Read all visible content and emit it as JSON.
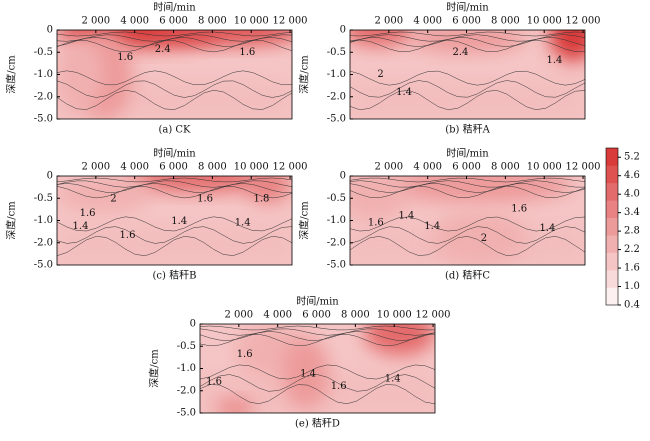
{
  "chart_data": [
    {
      "type": "contour",
      "xlabel": "时间/min",
      "ylabel": "深度/cm",
      "caption": "(a) CK",
      "xlim": [
        0,
        12100
      ],
      "xticks": [
        {
          "value": 2000,
          "label": "2 000"
        },
        {
          "value": 4000,
          "label": "4 000"
        },
        {
          "value": 6000,
          "label": "6 000"
        },
        {
          "value": 8000,
          "label": "8 000"
        },
        {
          "value": 10000,
          "label": "10 000"
        },
        {
          "value": 12000,
          "label": "12 000"
        }
      ],
      "ylim": [
        0,
        -5
      ],
      "yticks": [
        0,
        {
          "value": -0.5,
          "label": "-0.5"
        },
        {
          "value": -1,
          "label": "-1.0"
        },
        {
          "value": -2,
          "label": "-2.0"
        },
        {
          "value": -5,
          "label": "-5.0"
        }
      ],
      "contour_labels": [
        "1.6",
        "2.4",
        "1.6"
      ]
    },
    {
      "type": "contour",
      "xlabel": "时间/min",
      "ylabel": "深度/cm",
      "caption": "(b) 秸秆A",
      "xlim": [
        0,
        12100
      ],
      "xticks": [
        {
          "value": 2000,
          "label": "2 000"
        },
        {
          "value": 4000,
          "label": "4 000"
        },
        {
          "value": 6000,
          "label": "6 000"
        },
        {
          "value": 8000,
          "label": "8 000"
        },
        {
          "value": 10000,
          "label": "10 000"
        },
        {
          "value": 12000,
          "label": "12 000"
        }
      ],
      "ylim": [
        0,
        -5
      ],
      "yticks": [
        0,
        {
          "value": -0.5,
          "label": "-0.5"
        },
        {
          "value": -1,
          "label": "-1.0"
        },
        {
          "value": -2,
          "label": "-2.0"
        },
        {
          "value": -5,
          "label": "-5.0"
        }
      ],
      "contour_labels": [
        "2.4",
        "2",
        "1.4",
        "1.4"
      ]
    },
    {
      "type": "contour",
      "xlabel": "时间/min",
      "ylabel": "深度/cm",
      "caption": "(c)  秸秆B",
      "xlim": [
        0,
        12100
      ],
      "xticks": [
        {
          "value": 2000,
          "label": "2 000"
        },
        {
          "value": 4000,
          "label": "4 000"
        },
        {
          "value": 6000,
          "label": "6 000"
        },
        {
          "value": 8000,
          "label": "8 000"
        },
        {
          "value": 10000,
          "label": "10 000"
        },
        {
          "value": 12000,
          "label": "12 000"
        }
      ],
      "ylim": [
        0,
        -5
      ],
      "yticks": [
        0,
        {
          "value": -0.5,
          "label": "-0.5"
        },
        {
          "value": -1,
          "label": "-1.0"
        },
        {
          "value": -2,
          "label": "-2.0"
        },
        {
          "value": -5,
          "label": "-5.0"
        }
      ],
      "contour_labels": [
        "1.6",
        "1.4",
        "2",
        "1.6",
        "1.6",
        "1.4",
        "1.4",
        "1.8"
      ]
    },
    {
      "type": "contour",
      "xlabel": "时间/min",
      "ylabel": "深度/cm",
      "caption": "(d)  秸秆C",
      "xlim": [
        0,
        12100
      ],
      "xticks": [
        {
          "value": 2000,
          "label": "2 000"
        },
        {
          "value": 4000,
          "label": "4 000"
        },
        {
          "value": 6000,
          "label": "6 000"
        },
        {
          "value": 8000,
          "label": "8 000"
        },
        {
          "value": 10000,
          "label": "10 000"
        },
        {
          "value": 12000,
          "label": "12 000"
        }
      ],
      "ylim": [
        0,
        -5
      ],
      "yticks": [
        0,
        {
          "value": -0.5,
          "label": "-0.5"
        },
        {
          "value": -1,
          "label": "-1.0"
        },
        {
          "value": -2,
          "label": "-2.0"
        },
        {
          "value": -5,
          "label": "-5.0"
        }
      ],
      "contour_labels": [
        "1.6",
        "1.4",
        "1.4",
        "2",
        "1.6",
        "1.4"
      ]
    },
    {
      "type": "contour",
      "xlabel": "时间/min",
      "ylabel": "深度/cm",
      "caption": "(e)  秸秆D",
      "xlim": [
        0,
        12100
      ],
      "xticks": [
        {
          "value": 2000,
          "label": "2 000"
        },
        {
          "value": 4000,
          "label": "4 000"
        },
        {
          "value": 6000,
          "label": "6 000"
        },
        {
          "value": 8000,
          "label": "8 000"
        },
        {
          "value": 10000,
          "label": "10 000"
        },
        {
          "value": 12000,
          "label": "12 000"
        }
      ],
      "ylim": [
        0,
        -5
      ],
      "yticks": [
        0,
        {
          "value": -0.5,
          "label": "-0.5"
        },
        {
          "value": -1,
          "label": "-1.0"
        },
        {
          "value": -2,
          "label": "-2.0"
        },
        {
          "value": -5,
          "label": "-5.0"
        }
      ],
      "contour_labels": [
        "1.6",
        "1.4",
        "1.6",
        "1.4",
        "1.6"
      ]
    },
    {
      "type": "colorbar",
      "ylim": [
        0.4,
        5.5
      ],
      "yticks": [
        0.4,
        {
          "value": 1,
          "label": "1.0"
        },
        1.6,
        2.2,
        2.8,
        3.4,
        {
          "value": 4,
          "label": "4.0"
        },
        4.6,
        5.2
      ],
      "colors": [
        "#fdf0f0",
        "#f9dada",
        "#f5c5c5",
        "#f1b0b0",
        "#ed9a9a",
        "#e98383",
        "#e46b6b",
        "#df5252",
        "#d93a3a"
      ]
    }
  ]
}
